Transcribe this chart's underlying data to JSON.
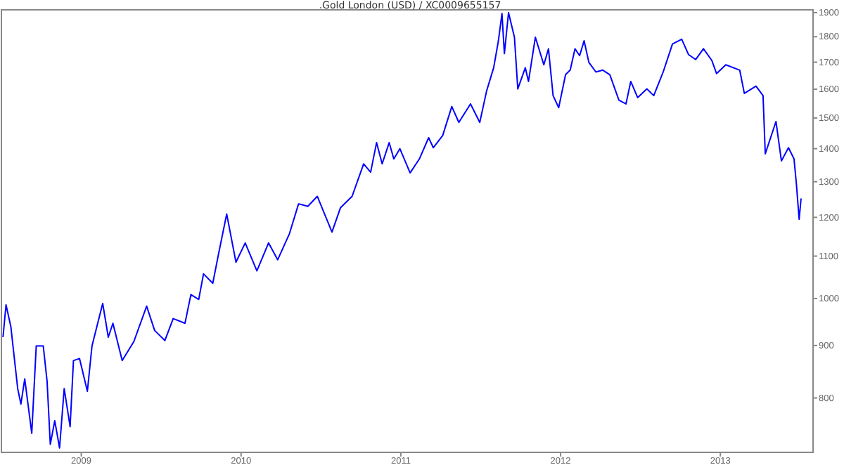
{
  "chart_data": {
    "type": "line",
    "title": ".Gold London (USD) / XC0009655157",
    "x": [
      2008.51,
      2008.529,
      2008.559,
      2008.602,
      2008.622,
      2008.646,
      2008.69,
      2008.718,
      2008.762,
      2008.786,
      2008.806,
      2008.834,
      2008.864,
      2008.893,
      2008.93,
      2008.951,
      2008.989,
      2009.038,
      2009.067,
      2009.134,
      2009.169,
      2009.198,
      2009.256,
      2009.329,
      2009.409,
      2009.459,
      2009.523,
      2009.575,
      2009.649,
      2009.686,
      2009.735,
      2009.765,
      2009.823,
      2009.86,
      2009.91,
      2009.968,
      2010.026,
      2010.099,
      2010.172,
      2010.229,
      2010.303,
      2010.36,
      2010.418,
      2010.477,
      2010.569,
      2010.622,
      2010.695,
      2010.767,
      2010.811,
      2010.848,
      2010.883,
      2010.927,
      2010.956,
      2010.994,
      2011.058,
      2011.116,
      2011.174,
      2011.203,
      2011.262,
      2011.319,
      2011.363,
      2011.436,
      2011.494,
      2011.537,
      2011.581,
      2011.61,
      2011.633,
      2011.648,
      2011.674,
      2011.711,
      2011.732,
      2011.779,
      2011.799,
      2011.842,
      2011.895,
      2011.924,
      2011.953,
      2011.988,
      2012.031,
      2012.06,
      2012.09,
      2012.119,
      2012.147,
      2012.177,
      2012.221,
      2012.264,
      2012.308,
      2012.365,
      2012.409,
      2012.439,
      2012.482,
      2012.54,
      2012.583,
      2012.642,
      2012.7,
      2012.758,
      2012.801,
      2012.845,
      2012.894,
      2012.947,
      2012.976,
      2013.034,
      2013.121,
      2013.15,
      2013.223,
      2013.267,
      2013.281,
      2013.348,
      2013.382,
      2013.426,
      2013.461,
      2013.476,
      2013.493,
      2013.505
    ],
    "series": [
      {
        "color": "#0000ff",
        "values": [
          917,
          986,
          939,
          817,
          789,
          835,
          739,
          899,
          899,
          830,
          721,
          760,
          715,
          817,
          750,
          870,
          874,
          812,
          899,
          989,
          917,
          946,
          870,
          908,
          983,
          931,
          910,
          956,
          946,
          1009,
          998,
          1057,
          1035,
          1107,
          1209,
          1085,
          1133,
          1064,
          1133,
          1091,
          1157,
          1237,
          1230,
          1258,
          1161,
          1226,
          1258,
          1353,
          1328,
          1419,
          1353,
          1419,
          1368,
          1400,
          1326,
          1368,
          1435,
          1403,
          1442,
          1539,
          1485,
          1548,
          1485,
          1594,
          1679,
          1781,
          1896,
          1733,
          1900,
          1798,
          1601,
          1679,
          1628,
          1798,
          1690,
          1752,
          1577,
          1535,
          1653,
          1670,
          1752,
          1725,
          1784,
          1699,
          1663,
          1670,
          1653,
          1561,
          1548,
          1628,
          1570,
          1601,
          1577,
          1663,
          1771,
          1790,
          1729,
          1710,
          1752,
          1706,
          1657,
          1690,
          1670,
          1585,
          1611,
          1577,
          1384,
          1488,
          1362,
          1403,
          1368,
          1292,
          1195,
          1252
        ]
      }
    ],
    "xlim": [
      2008.5,
      2013.58
    ],
    "xticks": [
      2009,
      2010,
      2011,
      2012,
      2013
    ],
    "ylim": [
      708,
      1912
    ],
    "yticks": [
      800,
      900,
      1000,
      1100,
      1200,
      1300,
      1400,
      1500,
      1600,
      1700,
      1800,
      1900
    ],
    "log": "y",
    "grid": false,
    "line_style": "solid",
    "marker": "none"
  }
}
